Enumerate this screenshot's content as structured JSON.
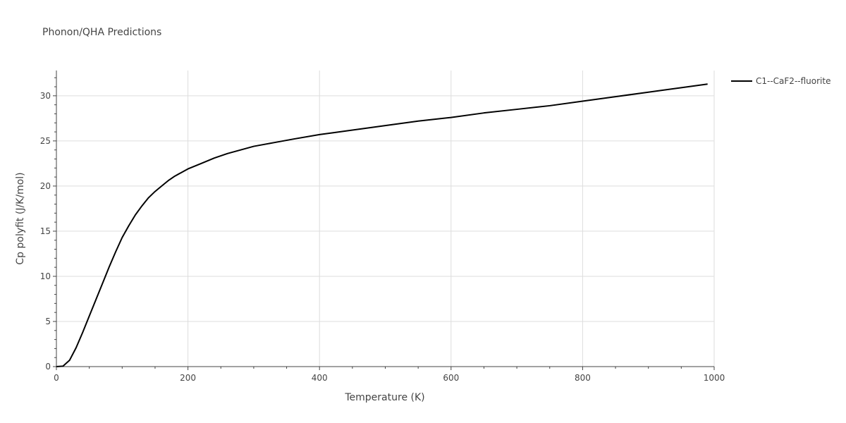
{
  "chart_data": {
    "type": "line",
    "title": "Phonon/QHA Predictions",
    "xlabel": "Temperature (K)",
    "ylabel": "Cp polyfit (J/K/mol)",
    "xlim": [
      0,
      1000
    ],
    "ylim": [
      0,
      32.8
    ],
    "x_ticks": [
      0,
      200,
      400,
      600,
      800,
      1000
    ],
    "y_ticks": [
      0,
      5,
      10,
      15,
      20,
      25,
      30
    ],
    "grid": true,
    "legend_position": "top-right",
    "series": [
      {
        "name": "C1--CaF2--fluorite",
        "color": "#000000",
        "x": [
          0,
          10,
          20,
          30,
          40,
          50,
          60,
          70,
          80,
          90,
          100,
          110,
          120,
          130,
          140,
          150,
          160,
          170,
          180,
          190,
          200,
          220,
          240,
          260,
          280,
          300,
          330,
          360,
          400,
          420,
          460,
          500,
          550,
          600,
          650,
          700,
          750,
          800,
          850,
          900,
          950,
          990
        ],
        "y": [
          0,
          0.05,
          0.7,
          2.1,
          3.8,
          5.6,
          7.4,
          9.2,
          11.0,
          12.7,
          14.3,
          15.6,
          16.8,
          17.8,
          18.7,
          19.4,
          20.0,
          20.6,
          21.1,
          21.5,
          21.9,
          22.5,
          23.1,
          23.6,
          24.0,
          24.4,
          24.8,
          25.2,
          25.7,
          25.9,
          26.3,
          26.7,
          27.2,
          27.6,
          28.1,
          28.5,
          28.9,
          29.4,
          29.9,
          30.4,
          30.9,
          31.3
        ]
      }
    ]
  }
}
